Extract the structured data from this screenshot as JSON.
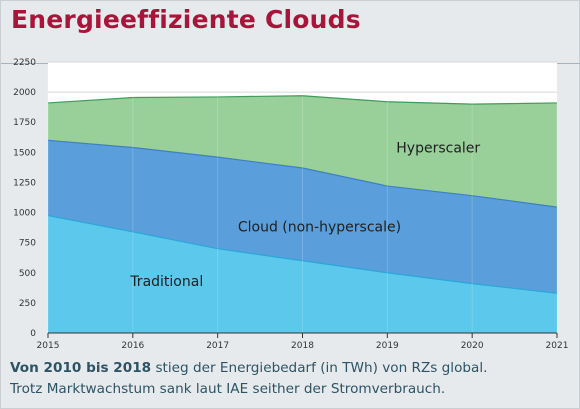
{
  "header": {
    "title": "Energieeffiziente Clouds"
  },
  "caption": {
    "line1_bold": "Von 2010 bis 2018",
    "line1_rest": " stieg der Energiebedarf (in TWh) von RZs global.",
    "line2": "Trotz Marktwachstum sank laut IAE seither der Stromverbrauch."
  },
  "chart_data": {
    "type": "area",
    "stacked": true,
    "x": [
      2015,
      2016,
      2017,
      2018,
      2019,
      2020,
      2021
    ],
    "xlim": [
      2015,
      2021
    ],
    "ylim": [
      0,
      2250
    ],
    "yticks": [
      0,
      250,
      500,
      750,
      1000,
      1250,
      1500,
      1750,
      2000,
      2250
    ],
    "grid": true,
    "series": [
      {
        "name": "Traditional",
        "values": [
          975,
          840,
          700,
          600,
          500,
          410,
          330
        ],
        "color": "#5bc8ec"
      },
      {
        "name": "Cloud (non-hyperscale)",
        "values": [
          625,
          700,
          760,
          770,
          720,
          730,
          715
        ],
        "color": "#5a9fdb"
      },
      {
        "name": "Hyperscaler",
        "values": [
          310,
          415,
          500,
          600,
          700,
          760,
          865
        ],
        "color": "#99cf99"
      }
    ]
  }
}
